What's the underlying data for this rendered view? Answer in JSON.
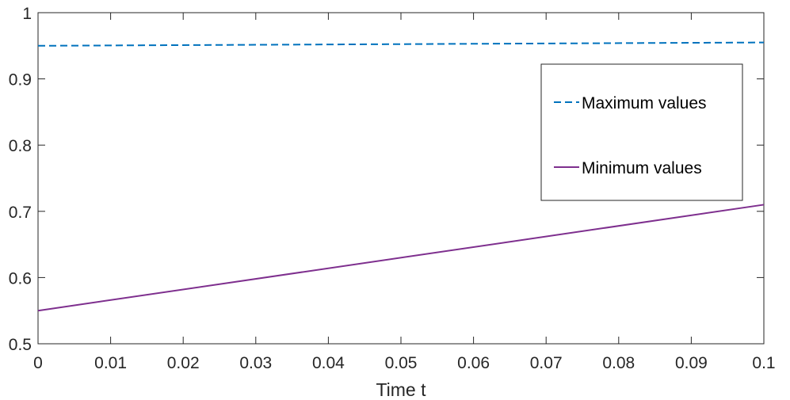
{
  "chart_data": {
    "type": "line",
    "title": "",
    "xlabel": "Time t",
    "ylabel": "",
    "xlim": [
      0,
      0.1
    ],
    "ylim": [
      0.5,
      1
    ],
    "x_ticks": [
      0,
      0.01,
      0.02,
      0.03,
      0.04,
      0.05,
      0.06,
      0.07,
      0.08,
      0.09,
      0.1
    ],
    "x_tick_labels": [
      "0",
      "0.01",
      "0.02",
      "0.03",
      "0.04",
      "0.05",
      "0.06",
      "0.07",
      "0.08",
      "0.09",
      "0.1"
    ],
    "y_ticks": [
      0.5,
      0.6,
      0.7,
      0.8,
      0.9,
      1
    ],
    "y_tick_labels": [
      "0.5",
      "0.6",
      "0.7",
      "0.8",
      "0.9",
      "1"
    ],
    "grid": false,
    "legend_position": "top-right",
    "series": [
      {
        "name": "Maximum values",
        "style": "dashed",
        "color": "#0072BD",
        "x": [
          0,
          0.1
        ],
        "y": [
          0.95,
          0.955
        ]
      },
      {
        "name": "Minimum values",
        "style": "solid",
        "color": "#7E2F8E",
        "x": [
          0,
          0.1
        ],
        "y": [
          0.55,
          0.71
        ]
      }
    ]
  }
}
